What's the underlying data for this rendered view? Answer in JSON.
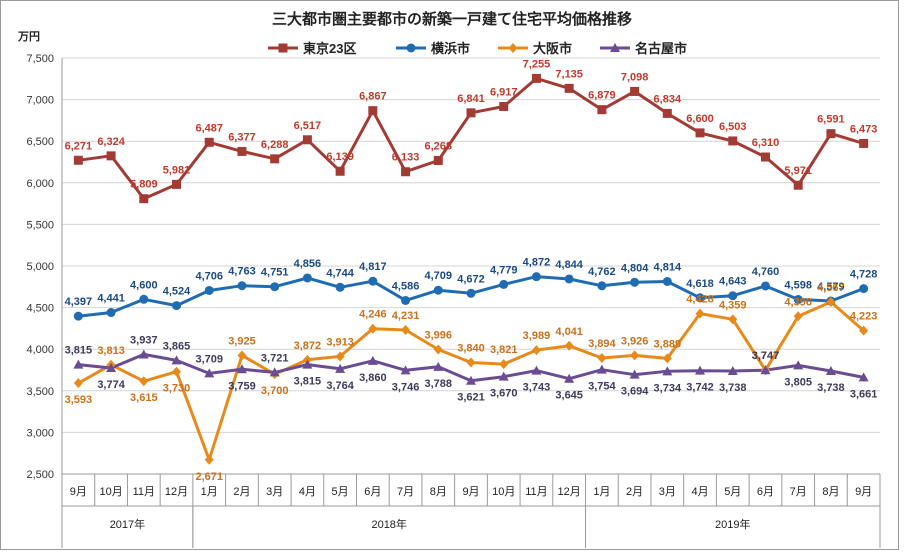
{
  "chart_data": {
    "type": "line",
    "title": "三大都市圏主要都市の新築一戸建て住宅平均価格推移",
    "ylabel": "万円",
    "ylim": [
      2500,
      7500
    ],
    "ytick_step": 500,
    "grid": "horizontal",
    "legend_position": "top",
    "categories": [
      "9月",
      "10月",
      "11月",
      "12月",
      "1月",
      "2月",
      "3月",
      "4月",
      "5月",
      "6月",
      "7月",
      "8月",
      "9月",
      "10月",
      "11月",
      "12月",
      "1月",
      "2月",
      "3月",
      "4月",
      "5月",
      "6月",
      "7月",
      "8月",
      "9月"
    ],
    "years": [
      {
        "label": "2017年",
        "start": 0,
        "end": 3
      },
      {
        "label": "2018年",
        "start": 4,
        "end": 15
      },
      {
        "label": "2019年",
        "start": 16,
        "end": 24
      }
    ],
    "series": [
      {
        "name": "東京23区",
        "color": "#a33b35",
        "label_color": "#c0392b",
        "marker": "square",
        "values": [
          6271,
          6324,
          5809,
          5981,
          6487,
          6377,
          6288,
          6517,
          6139,
          6867,
          6133,
          6268,
          6841,
          6917,
          7255,
          7135,
          6879,
          7098,
          6834,
          6600,
          6503,
          6310,
          5971,
          6591,
          6473
        ]
      },
      {
        "name": "横浜市",
        "color": "#1f6cb3",
        "label_color": "#1a4a80",
        "marker": "circle",
        "values": [
          4397,
          4441,
          4600,
          4524,
          4706,
          4763,
          4751,
          4856,
          4744,
          4817,
          4586,
          4709,
          4672,
          4779,
          4872,
          4844,
          4762,
          4804,
          4814,
          4618,
          4643,
          4760,
          4598,
          4579,
          4728
        ]
      },
      {
        "name": "大阪市",
        "color": "#e88a1a",
        "label_color": "#c9711b",
        "marker": "diamond",
        "values": [
          3593,
          3813,
          3615,
          3730,
          2671,
          3925,
          3700,
          3872,
          3913,
          4246,
          4231,
          3996,
          3840,
          3821,
          3989,
          4041,
          3894,
          3926,
          3889,
          4428,
          4359,
          3747,
          4396,
          4567,
          4223
        ]
      },
      {
        "name": "名古屋市",
        "color": "#6a4c93",
        "label_color": "#3b3b5c",
        "marker": "triangle",
        "values": [
          3815,
          3774,
          3937,
          3865,
          3709,
          3759,
          3721,
          3815,
          3764,
          3860,
          3746,
          3788,
          3621,
          3670,
          3743,
          3645,
          3754,
          3694,
          3734,
          3742,
          3738,
          3747,
          3805,
          3738,
          3661
        ]
      }
    ]
  }
}
